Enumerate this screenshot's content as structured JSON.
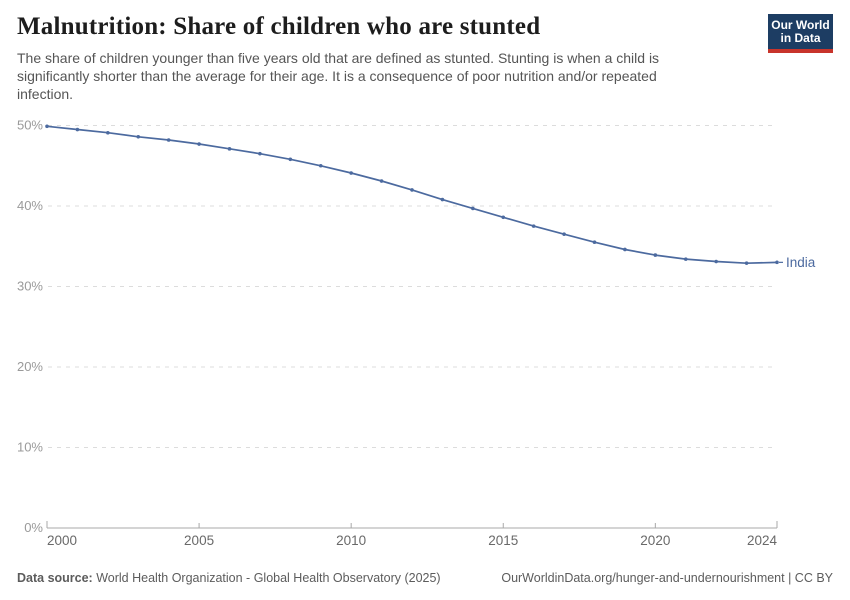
{
  "header": {
    "title": "Malnutrition: Share of children who are stunted",
    "subtitle": "The share of children younger than five years old that are defined as stunted. Stunting is when a child is significantly shorter than the average for their age. It is a consequence of poor nutrition and/or repeated infection.",
    "logo": {
      "line1": "Our World",
      "line2": "in Data"
    }
  },
  "chart_data": {
    "type": "line",
    "title": "Malnutrition: Share of children who are stunted",
    "entity_label": "India",
    "unit": "%",
    "x": [
      2000,
      2001,
      2002,
      2003,
      2004,
      2005,
      2006,
      2007,
      2008,
      2009,
      2010,
      2011,
      2012,
      2013,
      2014,
      2015,
      2016,
      2017,
      2018,
      2019,
      2020,
      2021,
      2022,
      2023,
      2024
    ],
    "series": [
      {
        "name": "India",
        "color": "#4c6a9f",
        "values": [
          49.9,
          49.5,
          49.1,
          48.6,
          48.2,
          47.7,
          47.1,
          46.5,
          45.8,
          45.0,
          44.1,
          43.1,
          42.0,
          40.8,
          39.7,
          38.6,
          37.5,
          36.5,
          35.5,
          34.6,
          33.9,
          33.4,
          33.1,
          32.9,
          33.0
        ]
      }
    ],
    "xlabel": "",
    "ylabel": "",
    "xlim": [
      2000,
      2024
    ],
    "ylim": [
      0,
      50
    ],
    "x_ticks": [
      2000,
      2005,
      2010,
      2015,
      2020,
      2024
    ],
    "y_ticks": [
      0,
      10,
      20,
      30,
      40,
      50
    ],
    "y_tick_suffix": "%",
    "grid": "horizontal-dashed",
    "legend_position": "end-of-line"
  },
  "footer": {
    "source_label": "Data source:",
    "source_value": "World Health Organization - Global Health Observatory (2025)",
    "link_text": "OurWorldinData.org/hunger-and-undernourishment | CC BY"
  },
  "colors": {
    "line": "#4c6a9f",
    "gridline": "#dcdcdc",
    "axis": "#a8a8a8",
    "y_tick_label": "#9a9a9a",
    "x_tick_label": "#696969",
    "title": "#1d1d1d",
    "subtitle": "#555555",
    "footer_text": "#5c5c5c",
    "logo_bg": "#1d3d63",
    "logo_accent": "#c8342b"
  }
}
